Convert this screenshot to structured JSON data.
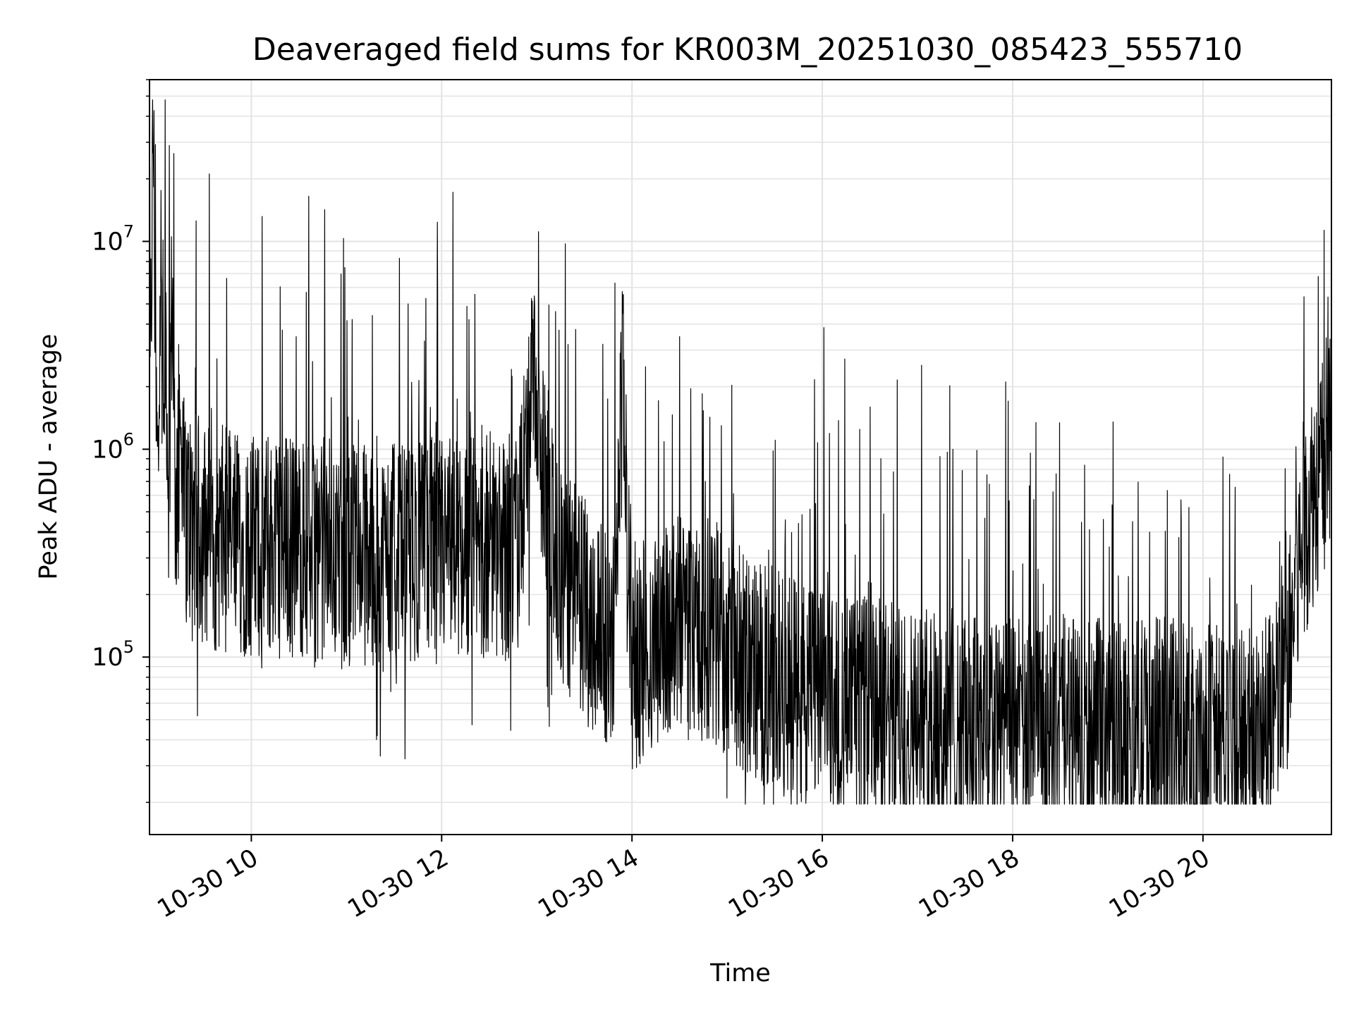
{
  "chart_data": {
    "type": "line",
    "title": "Deaveraged field sums for KR003M_20251030_085423_555710",
    "xlabel": "Time",
    "ylabel": "Peak ADU - average",
    "yscale": "log",
    "xlim_hours": [
      8.93,
      21.35
    ],
    "ylim": [
      14000,
      60000000
    ],
    "x_tick_labels": [
      "10-30 10",
      "10-30 12",
      "10-30 14",
      "10-30 16",
      "10-30 18",
      "10-30 20"
    ],
    "x_tick_hours": [
      10,
      12,
      14,
      16,
      18,
      20
    ],
    "y_ticks": [
      {
        "base": "10",
        "exp": "5",
        "value": 100000
      },
      {
        "base": "10",
        "exp": "6",
        "value": 1000000
      },
      {
        "base": "10",
        "exp": "7",
        "value": 10000000
      }
    ],
    "grid": true,
    "line_color": "#000000",
    "series": [
      {
        "name": "Peak ADU - average",
        "x_hours": [
          8.93,
          8.97,
          9.0,
          9.02,
          9.05,
          9.08,
          9.1,
          9.13,
          9.17,
          9.2,
          9.25,
          9.3,
          9.4,
          9.5,
          9.6,
          9.7,
          9.8,
          9.9,
          10.0,
          10.2,
          10.4,
          10.6,
          10.8,
          11.0,
          11.2,
          11.4,
          11.6,
          11.8,
          12.0,
          12.2,
          12.4,
          12.6,
          12.8,
          12.95,
          13.2,
          13.4,
          13.6,
          13.8,
          13.9,
          14.0,
          14.2,
          14.4,
          14.6,
          14.8,
          15.0,
          15.2,
          15.4,
          15.6,
          15.8,
          16.0,
          16.2,
          16.4,
          16.6,
          16.8,
          17.0,
          17.2,
          17.4,
          17.6,
          17.8,
          18.0,
          18.2,
          18.4,
          18.6,
          18.8,
          19.0,
          19.2,
          19.4,
          19.6,
          19.8,
          20.0,
          20.2,
          20.4,
          20.6,
          20.7,
          20.8,
          20.9,
          21.0,
          21.1,
          21.2,
          21.3,
          21.35
        ],
        "values": [
          900000,
          40000000,
          1200000,
          700000,
          8500000,
          900000,
          4000000,
          800000,
          6000000,
          600000,
          700000,
          500000,
          450000,
          400000,
          380000,
          370000,
          360000,
          350000,
          340000,
          345000,
          350000,
          340000,
          330000,
          320000,
          310000,
          300000,
          310000,
          320000,
          330000,
          340000,
          350000,
          345000,
          330000,
          1900000,
          250000,
          200000,
          150000,
          120000,
          2100000,
          100000,
          110000,
          130000,
          140000,
          130000,
          120000,
          90000,
          80000,
          75000,
          70000,
          65000,
          60000,
          58000,
          55000,
          52000,
          50000,
          48000,
          47000,
          46000,
          45000,
          44000,
          45000,
          46000,
          45000,
          44000,
          43000,
          44000,
          45000,
          44000,
          43000,
          42000,
          41000,
          40000,
          42000,
          45000,
          60000,
          100000,
          250000,
          500000,
          700000,
          900000,
          1000000
        ]
      }
    ]
  }
}
